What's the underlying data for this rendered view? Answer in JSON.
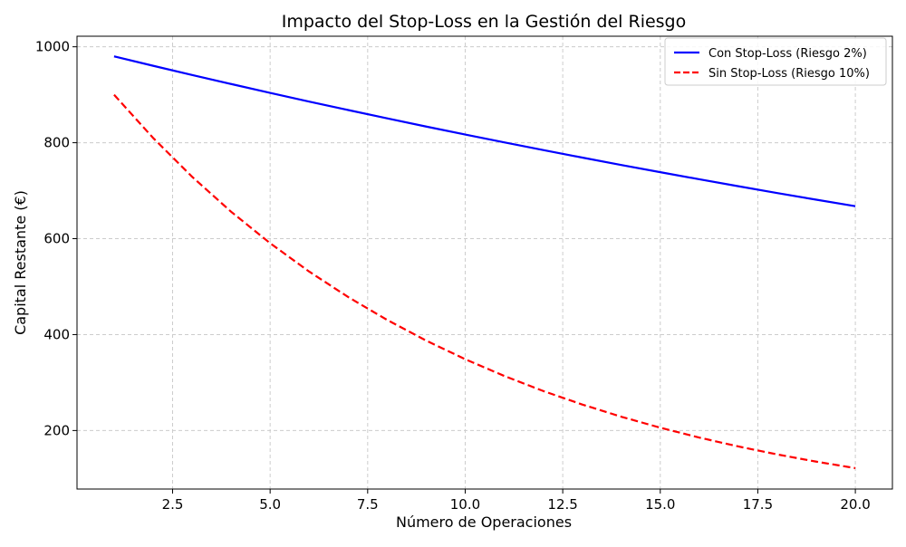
{
  "chart_data": {
    "type": "line",
    "title": "Impacto del Stop-Loss en la Gestión del Riesgo",
    "xlabel": "Número de Operaciones",
    "ylabel": "Capital Restante (€)",
    "xlim": [
      0.05,
      20.95
    ],
    "ylim": [
      78,
      1022
    ],
    "x_ticks": [
      2.5,
      5.0,
      7.5,
      10.0,
      12.5,
      15.0,
      17.5,
      20.0
    ],
    "x_tick_labels": [
      "2.5",
      "5.0",
      "7.5",
      "10.0",
      "12.5",
      "15.0",
      "17.5",
      "20.0"
    ],
    "y_ticks": [
      200,
      400,
      600,
      800,
      1000
    ],
    "y_tick_labels": [
      "200",
      "400",
      "600",
      "800",
      "1000"
    ],
    "grid": true,
    "legend_position": "top-right",
    "x": [
      1,
      2,
      3,
      4,
      5,
      6,
      7,
      8,
      9,
      10,
      11,
      12,
      13,
      14,
      15,
      16,
      17,
      18,
      19,
      20
    ],
    "series": [
      {
        "name": "Con Stop-Loss (Riesgo 2%)",
        "color": "#0000ff",
        "line_style": "solid",
        "values": [
          980,
          960.4,
          941.2,
          922.4,
          903.9,
          885.8,
          868.1,
          850.8,
          833.7,
          817.1,
          800.7,
          784.7,
          769.0,
          753.6,
          738.6,
          723.8,
          709.3,
          695.1,
          681.2,
          667.6
        ]
      },
      {
        "name": "Sin Stop-Loss (Riesgo 10%)",
        "color": "#ff0000",
        "line_style": "dashed",
        "values": [
          900,
          810,
          729,
          656.1,
          590.5,
          531.4,
          478.3,
          430.5,
          387.4,
          348.7,
          313.8,
          282.4,
          254.2,
          228.8,
          205.9,
          185.3,
          166.8,
          150.1,
          135.1,
          121.6
        ]
      }
    ]
  }
}
